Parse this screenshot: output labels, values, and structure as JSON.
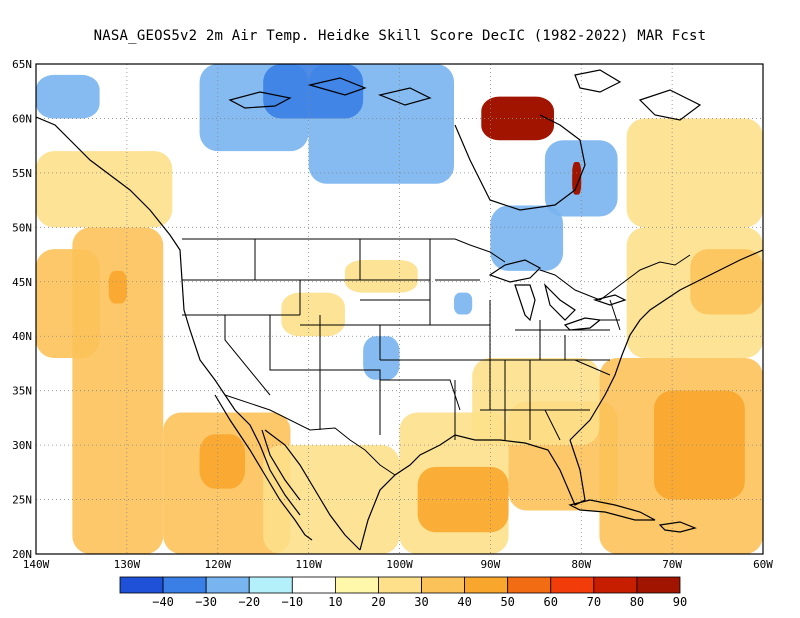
{
  "title": "NASA_GEOS5v2  2m Air Temp. Heidke Skill Score DecIC (1982-2022) MAR Fcst",
  "map": {
    "lon_range": [
      -140,
      -60
    ],
    "lat_range": [
      20,
      65
    ],
    "lon_ticks": [
      {
        "value": -140,
        "label": "140W"
      },
      {
        "value": -130,
        "label": "130W"
      },
      {
        "value": -120,
        "label": "120W"
      },
      {
        "value": -110,
        "label": "110W"
      },
      {
        "value": -100,
        "label": "100W"
      },
      {
        "value": -90,
        "label": "90W"
      },
      {
        "value": -80,
        "label": "80W"
      },
      {
        "value": -70,
        "label": "70W"
      },
      {
        "value": -60,
        "label": "60W"
      }
    ],
    "lat_ticks": [
      {
        "value": 20,
        "label": "20N"
      },
      {
        "value": 25,
        "label": "25N"
      },
      {
        "value": 30,
        "label": "30N"
      },
      {
        "value": 35,
        "label": "35N"
      },
      {
        "value": 40,
        "label": "40N"
      },
      {
        "value": 45,
        "label": "45N"
      },
      {
        "value": 50,
        "label": "50N"
      },
      {
        "value": 55,
        "label": "55N"
      },
      {
        "value": 60,
        "label": "60N"
      },
      {
        "value": 65,
        "label": "65N"
      }
    ],
    "gridlines": "dotted",
    "skill_regions": [
      {
        "level": 30,
        "lon": [
          -136,
          -126
        ],
        "lat": [
          20,
          50
        ]
      },
      {
        "level": 30,
        "lon": [
          -140,
          -133
        ],
        "lat": [
          38,
          48
        ]
      },
      {
        "level": 40,
        "lon": [
          -132,
          -130
        ],
        "lat": [
          43,
          46
        ]
      },
      {
        "level": 30,
        "lon": [
          -126,
          -112
        ],
        "lat": [
          20,
          33
        ]
      },
      {
        "level": 40,
        "lon": [
          -122,
          -117
        ],
        "lat": [
          26,
          31
        ]
      },
      {
        "level": 20,
        "lon": [
          -140,
          -125
        ],
        "lat": [
          50,
          57
        ]
      },
      {
        "level": 20,
        "lon": [
          -115,
          -100
        ],
        "lat": [
          20,
          30
        ]
      },
      {
        "level": 20,
        "lon": [
          -100,
          -88
        ],
        "lat": [
          20,
          33
        ]
      },
      {
        "level": 40,
        "lon": [
          -98,
          -88
        ],
        "lat": [
          22,
          28
        ]
      },
      {
        "level": 30,
        "lon": [
          -88,
          -76
        ],
        "lat": [
          24,
          34
        ]
      },
      {
        "level": 20,
        "lon": [
          -92,
          -78
        ],
        "lat": [
          30,
          38
        ]
      },
      {
        "level": 30,
        "lon": [
          -78,
          -60
        ],
        "lat": [
          20,
          38
        ]
      },
      {
        "level": 40,
        "lon": [
          -72,
          -62
        ],
        "lat": [
          25,
          35
        ]
      },
      {
        "level": 20,
        "lon": [
          -75,
          -60
        ],
        "lat": [
          38,
          50
        ]
      },
      {
        "level": 30,
        "lon": [
          -68,
          -60
        ],
        "lat": [
          42,
          48
        ]
      },
      {
        "level": 20,
        "lon": [
          -75,
          -60
        ],
        "lat": [
          50,
          60
        ]
      },
      {
        "level": 20,
        "lon": [
          -106,
          -98
        ],
        "lat": [
          44,
          47
        ]
      },
      {
        "level": 20,
        "lon": [
          -113,
          -106
        ],
        "lat": [
          40,
          44
        ]
      },
      {
        "level": -20,
        "lon": [
          -122,
          -110
        ],
        "lat": [
          57,
          65
        ]
      },
      {
        "level": -20,
        "lon": [
          -110,
          -94
        ],
        "lat": [
          54,
          65
        ]
      },
      {
        "level": -30,
        "lon": [
          -115,
          -104
        ],
        "lat": [
          60,
          65
        ]
      },
      {
        "level": -20,
        "lon": [
          -84,
          -76
        ],
        "lat": [
          51,
          58
        ]
      },
      {
        "level": -20,
        "lon": [
          -90,
          -82
        ],
        "lat": [
          46,
          52
        ]
      },
      {
        "level": -20,
        "lon": [
          -140,
          -133
        ],
        "lat": [
          60,
          64
        ]
      },
      {
        "level": -20,
        "lon": [
          -104,
          -100
        ],
        "lat": [
          36,
          40
        ]
      },
      {
        "level": -20,
        "lon": [
          -94,
          -92
        ],
        "lat": [
          42,
          44
        ]
      },
      {
        "level": 90,
        "lon": [
          -91,
          -83
        ],
        "lat": [
          58,
          62
        ]
      },
      {
        "level": 80,
        "lon": [
          -81,
          -80
        ],
        "lat": [
          53,
          56
        ]
      }
    ]
  },
  "colorbar": {
    "colors": [
      "#1e50d8",
      "#3a7fe6",
      "#78b4f0",
      "#b4f0fa",
      "#ffffff",
      "#fff8aa",
      "#fde089",
      "#fcc25a",
      "#f9a62c",
      "#f26c14",
      "#f23c0a",
      "#c81e00",
      "#a01400"
    ],
    "labels": [
      "-40",
      "-30",
      "-20",
      "-10",
      "10",
      "20",
      "30",
      "40",
      "50",
      "60",
      "70",
      "80",
      "90"
    ]
  }
}
